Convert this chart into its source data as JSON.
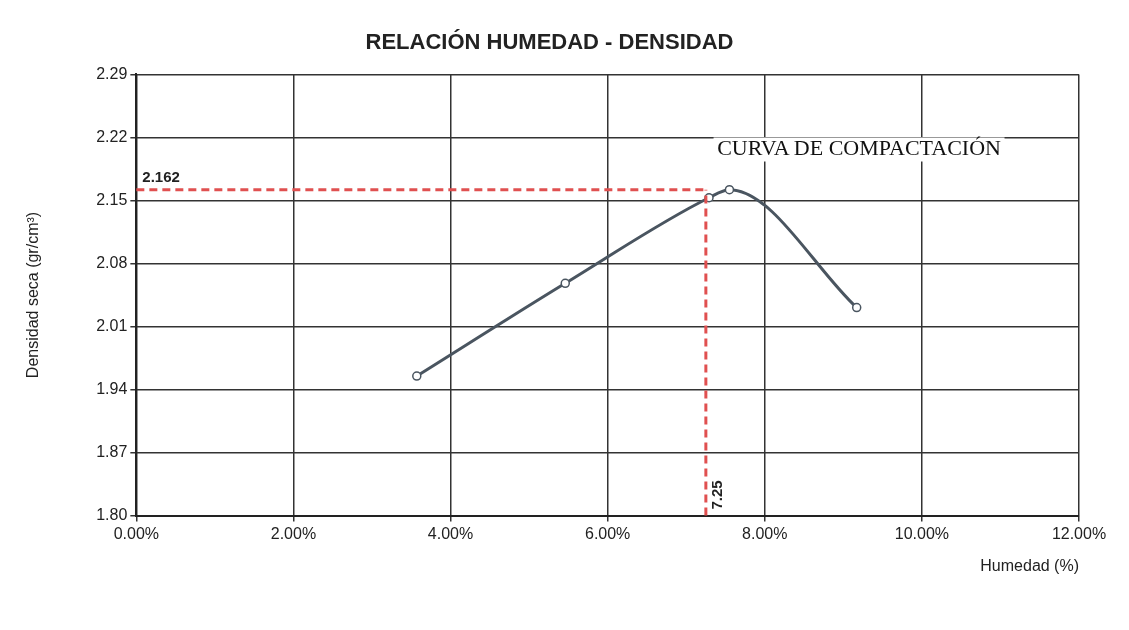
{
  "chart_data": {
    "type": "line",
    "title": "RELACIÓN HUMEDAD - DENSIDAD",
    "xlabel": "Humedad (%)",
    "ylabel": "Densidad seca (gr/cm³)",
    "annotations": [
      "CURVA DE COMPACTACIÓN"
    ],
    "x": [
      3.57,
      5.46,
      7.29,
      7.55,
      9.17
    ],
    "series": [
      {
        "color": "#4a5560",
        "values": [
          1.955,
          2.058,
          2.153,
          2.162,
          2.031
        ]
      }
    ],
    "xlim": [
      0,
      12
    ],
    "xticks": [
      {
        "value": 0,
        "label": "0.00%"
      },
      {
        "value": 2,
        "label": "2.00%"
      },
      {
        "value": 4,
        "label": "4.00%"
      },
      {
        "value": 6,
        "label": "6.00%"
      },
      {
        "value": 8,
        "label": "8.00%"
      },
      {
        "value": 10,
        "label": "10.00%"
      },
      {
        "value": 12,
        "label": "12.00%"
      }
    ],
    "ylim": [
      1.8,
      2.29
    ],
    "yticks": [
      {
        "value": 1.8,
        "label": "1.80"
      },
      {
        "value": 1.87,
        "label": "1.87"
      },
      {
        "value": 1.94,
        "label": "1.94"
      },
      {
        "value": 2.01,
        "label": "2.01"
      },
      {
        "value": 2.08,
        "label": "2.08"
      },
      {
        "value": 2.15,
        "label": "2.15"
      },
      {
        "value": 2.22,
        "label": "2.22"
      },
      {
        "value": 2.29,
        "label": "2.29"
      }
    ],
    "ref_lines": [
      {
        "axis": "y",
        "value": 2.162,
        "label": "2.162",
        "color": "#e05050",
        "line_style": "dashed"
      },
      {
        "axis": "x",
        "value": 7.25,
        "label": "7.25",
        "color": "#e05050",
        "line_style": "dashed"
      }
    ],
    "grid": true,
    "legend": false,
    "marker": "circle",
    "line_style": "solid"
  }
}
